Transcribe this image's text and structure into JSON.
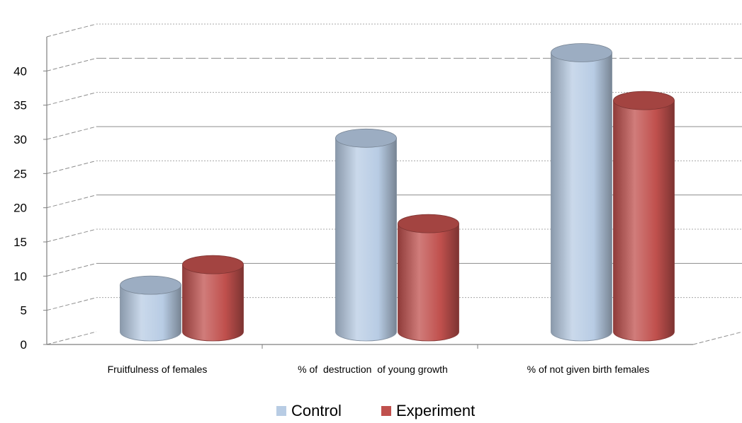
{
  "chart_data": {
    "type": "bar",
    "style": "3d-cylinder",
    "categories": [
      "Fruitfulness of females",
      "% of  destruction  of young growth",
      "% of not given birth females"
    ],
    "series": [
      {
        "name": "Control",
        "values": [
          7,
          28.5,
          41
        ],
        "color": "#b8cce4"
      },
      {
        "name": "Experiment",
        "values": [
          10,
          16,
          34
        ],
        "color": "#c0504d"
      }
    ],
    "xlabel": "",
    "ylabel": "",
    "ylim": [
      0,
      45
    ],
    "yticks": [
      0,
      5,
      10,
      15,
      20,
      25,
      30,
      35,
      40
    ],
    "grid": true,
    "legend_position": "bottom"
  }
}
